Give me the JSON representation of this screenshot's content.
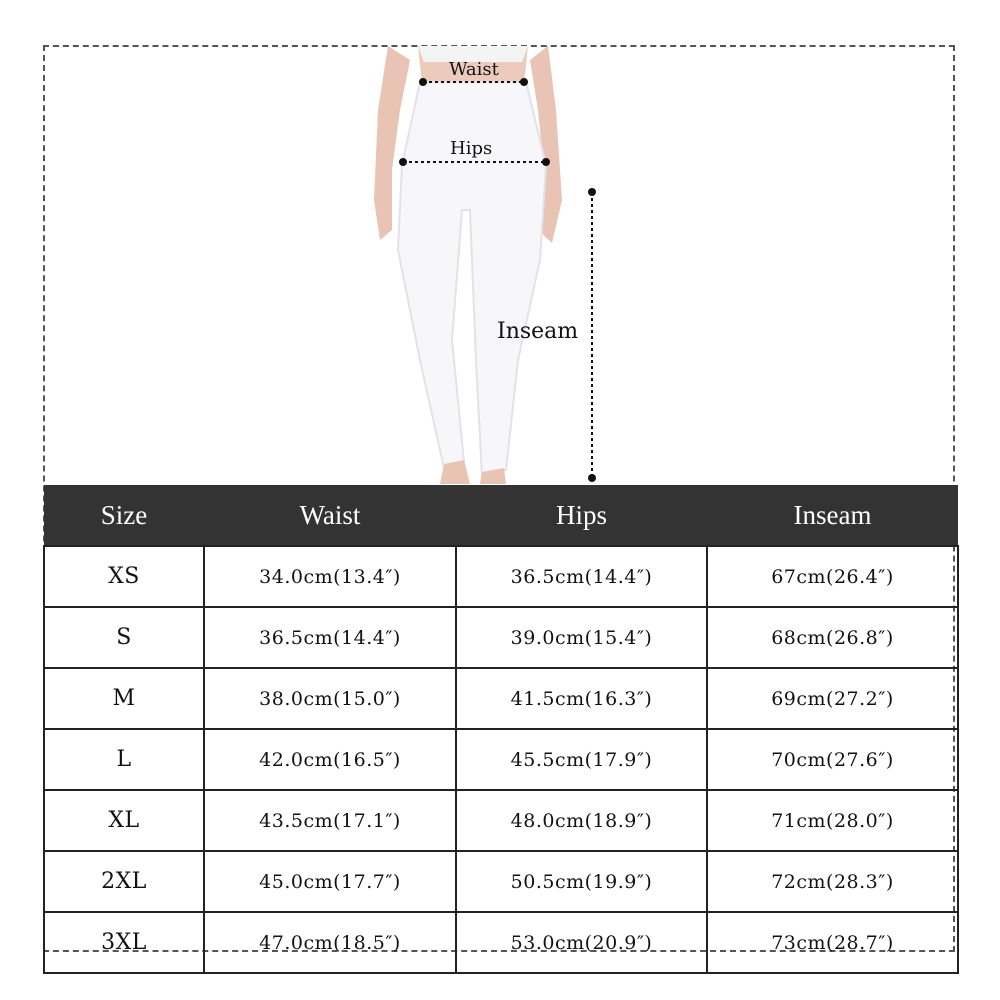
{
  "figure": {
    "labels": {
      "waist": "Waist",
      "hips": "Hips",
      "inseam": "Inseam"
    }
  },
  "table": {
    "headers": [
      "Size",
      "Waist",
      "Hips",
      "Inseam"
    ],
    "rows": [
      [
        "XS",
        "34.0cm(13.4″)",
        "36.5cm(14.4″)",
        "67cm(26.4″)"
      ],
      [
        "S",
        "36.5cm(14.4″)",
        "39.0cm(15.4″)",
        "68cm(26.8″)"
      ],
      [
        "M",
        "38.0cm(15.0″)",
        "41.5cm(16.3″)",
        "69cm(27.2″)"
      ],
      [
        "L",
        "42.0cm(16.5″)",
        "45.5cm(17.9″)",
        "70cm(27.6″)"
      ],
      [
        "XL",
        "43.5cm(17.1″)",
        "48.0cm(18.9″)",
        "71cm(28.0″)"
      ],
      [
        "2XL",
        "45.0cm(17.7″)",
        "50.5cm(19.9″)",
        "72cm(28.3″)"
      ],
      [
        "3XL",
        "47.0cm(18.5″)",
        "53.0cm(20.9″)",
        "73cm(28.7″)"
      ]
    ]
  },
  "colors": {
    "header_bg": "#333333",
    "header_text": "#ffffff",
    "border": "#222222"
  }
}
